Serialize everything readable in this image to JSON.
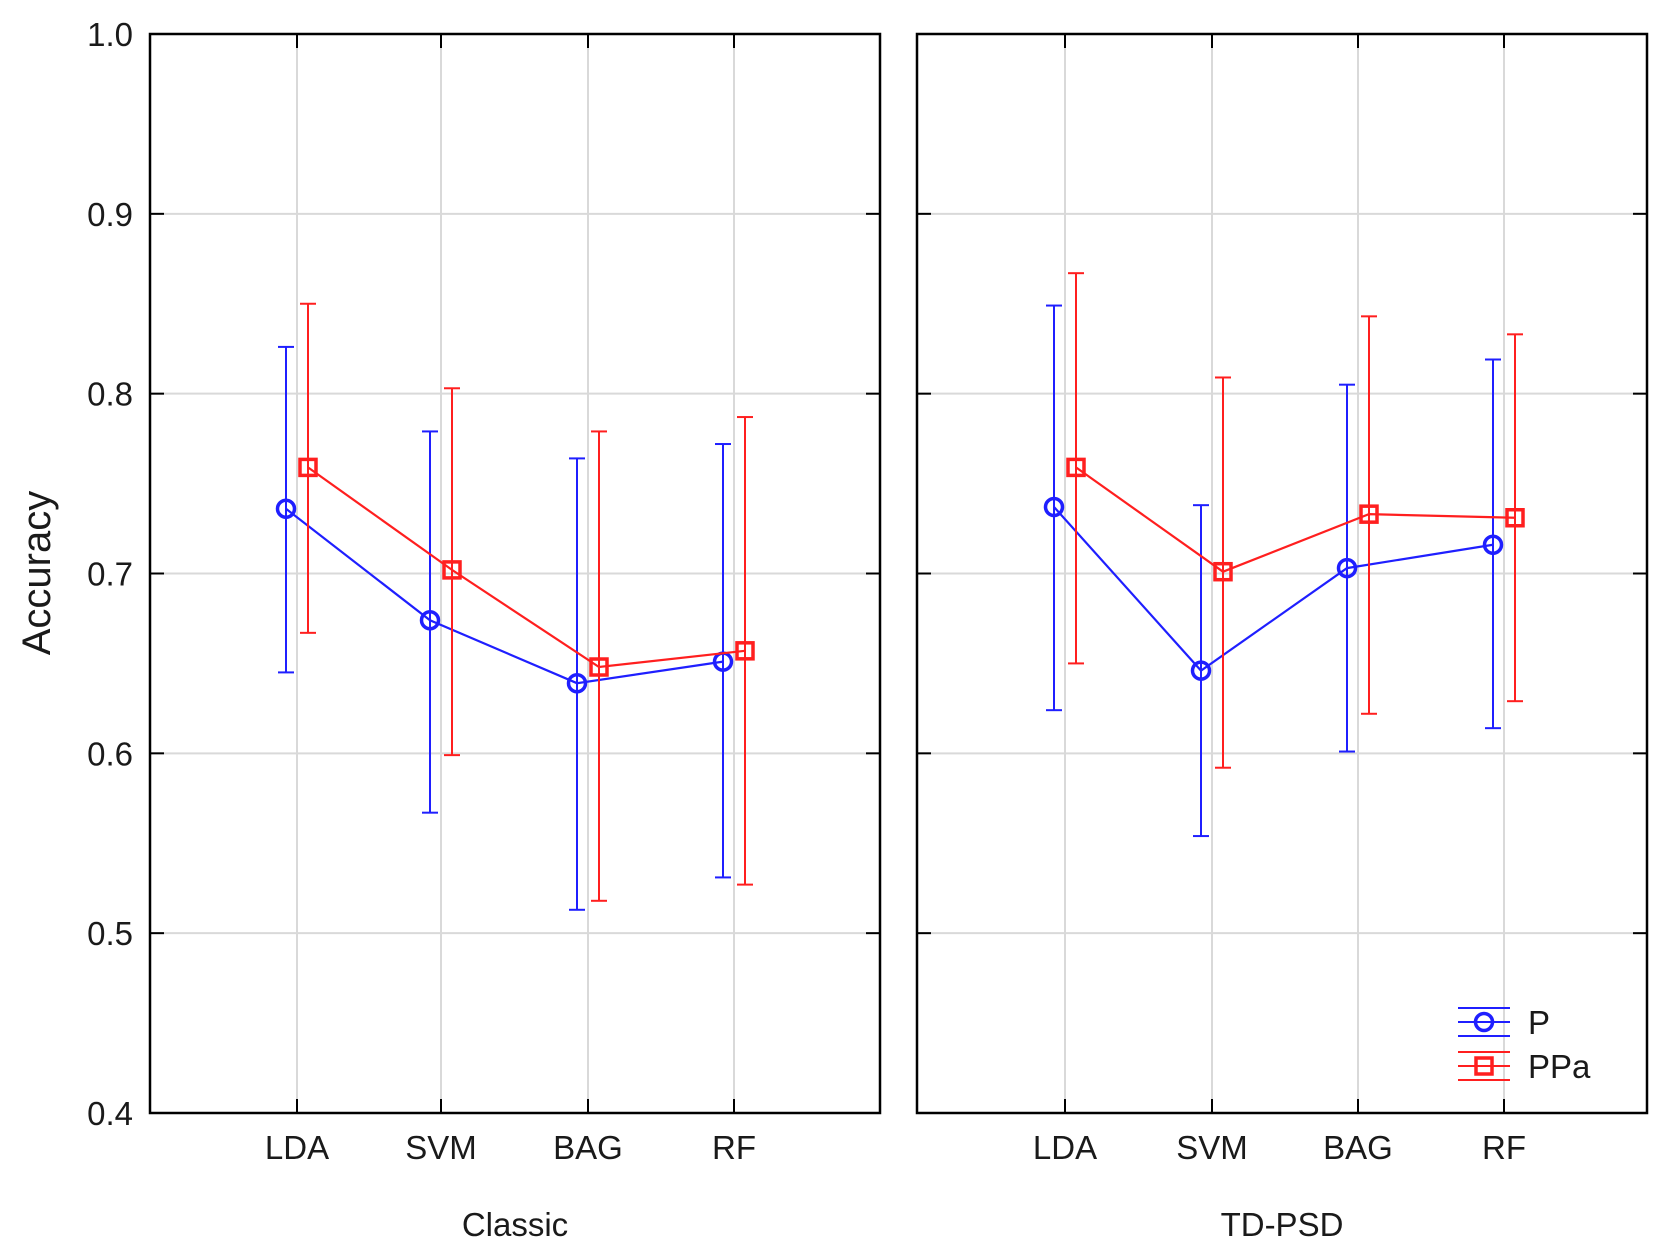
{
  "chart_data": {
    "type": "line",
    "ylabel": "Accuracy",
    "ylim": [
      0.4,
      1.0
    ],
    "yticks": [
      "0.4",
      "0.5",
      "0.6",
      "0.7",
      "0.8",
      "0.9",
      "1.0"
    ],
    "categories": [
      "LDA",
      "SVM",
      "BAG",
      "RF"
    ],
    "grid": true,
    "legend_position": "bottom-right",
    "panels": [
      {
        "label": "Classic",
        "series": [
          {
            "name": "P",
            "color": "#1f1fff",
            "marker": "circle",
            "values": [
              0.736,
              0.674,
              0.639,
              0.651
            ],
            "lower": [
              0.645,
              0.567,
              0.513,
              0.531
            ],
            "upper": [
              0.826,
              0.779,
              0.764,
              0.772
            ]
          },
          {
            "name": "PPa",
            "color": "#ff1f1f",
            "marker": "square",
            "values": [
              0.759,
              0.702,
              0.648,
              0.657
            ],
            "lower": [
              0.667,
              0.599,
              0.518,
              0.527
            ],
            "upper": [
              0.85,
              0.803,
              0.779,
              0.787
            ]
          }
        ]
      },
      {
        "label": "TD-PSD",
        "series": [
          {
            "name": "P",
            "color": "#1f1fff",
            "marker": "circle",
            "values": [
              0.737,
              0.646,
              0.703,
              0.716
            ],
            "lower": [
              0.624,
              0.554,
              0.601,
              0.614
            ],
            "upper": [
              0.849,
              0.738,
              0.805,
              0.819
            ]
          },
          {
            "name": "PPa",
            "color": "#ff1f1f",
            "marker": "square",
            "values": [
              0.759,
              0.701,
              0.733,
              0.731
            ],
            "lower": [
              0.65,
              0.592,
              0.622,
              0.629
            ],
            "upper": [
              0.867,
              0.809,
              0.843,
              0.833
            ]
          }
        ]
      }
    ],
    "legend": [
      {
        "name": "P",
        "color": "#1f1fff",
        "marker": "circle"
      },
      {
        "name": "PPa",
        "color": "#ff1f1f",
        "marker": "square"
      }
    ]
  }
}
